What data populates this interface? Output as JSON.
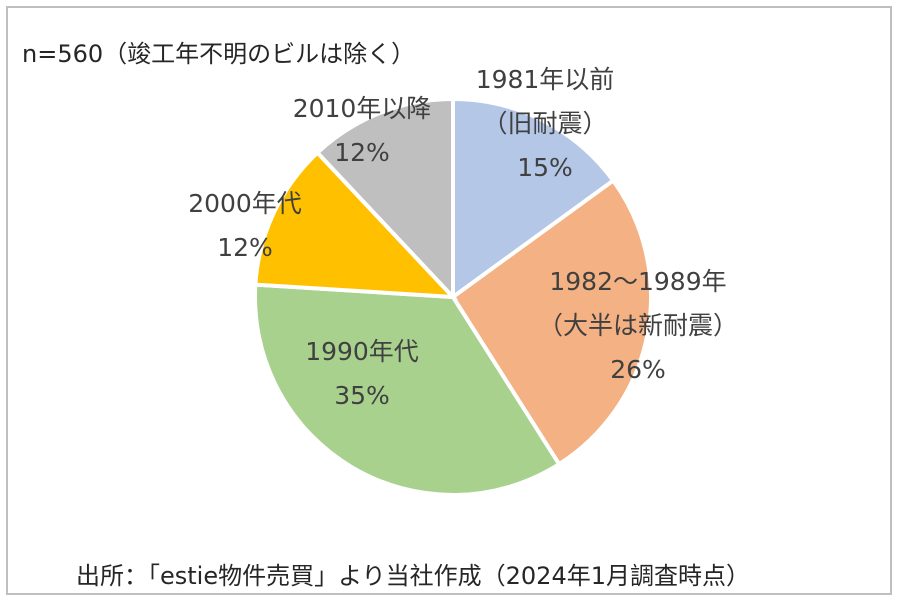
{
  "notes": {
    "sample": "n=560（竣工年不明のビルは除く）",
    "source": "出所：「estie物件売買」より当社作成（2024年1月調査時点）"
  },
  "chart_data": {
    "type": "pie",
    "start_angle_deg": 0,
    "direction": "clockwise",
    "slices": [
      {
        "label_lines": [
          "1981年以前",
          "（旧耐震）"
        ],
        "value": 15,
        "value_label": "15%",
        "color": "#b4c7e7"
      },
      {
        "label_lines": [
          "1982～1989年",
          "（大半は新耐震）"
        ],
        "value": 26,
        "value_label": "26%",
        "color": "#f4b183"
      },
      {
        "label_lines": [
          "1990年代"
        ],
        "value": 35,
        "value_label": "35%",
        "color": "#a9d18e"
      },
      {
        "label_lines": [
          "2000年代"
        ],
        "value": 12,
        "value_label": "12%",
        "color": "#ffc000"
      },
      {
        "label_lines": [
          "2010年以降"
        ],
        "value": 12,
        "value_label": "12%",
        "color": "#bfbfbf"
      }
    ],
    "legend": "none"
  }
}
